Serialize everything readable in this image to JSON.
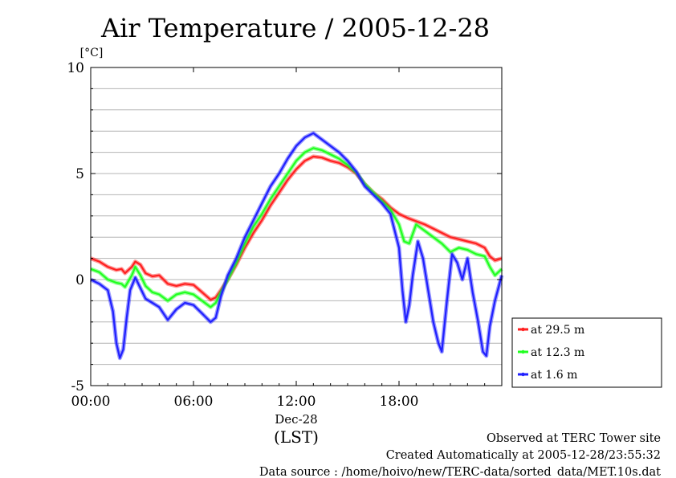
{
  "chart_data": {
    "type": "line",
    "title": "Air Temperature / 2005-12-28",
    "ylabel": "[°C]",
    "xlabel": "(LST)",
    "date_label": "Dec-28",
    "ylim": [
      -5,
      10
    ],
    "xlim": [
      0,
      24
    ],
    "y_ticks": [
      {
        "value": 10,
        "label": "10"
      },
      {
        "value": 5,
        "label": "5"
      },
      {
        "value": 0,
        "label": "0"
      },
      {
        "value": -5,
        "label": "-5"
      }
    ],
    "x_ticks": [
      {
        "value": 0,
        "label": "00:00"
      },
      {
        "value": 6,
        "label": "06:00"
      },
      {
        "value": 12,
        "label": "12:00"
      },
      {
        "value": 18,
        "label": "18:00"
      }
    ],
    "grid": true,
    "legend_position": "right-bottom-outside",
    "series": [
      {
        "name": "at 29.5 m",
        "color": "#ff2020",
        "points": [
          [
            0,
            1.0
          ],
          [
            0.5,
            0.85
          ],
          [
            1.0,
            0.6
          ],
          [
            1.5,
            0.45
          ],
          [
            1.8,
            0.5
          ],
          [
            2.0,
            0.3
          ],
          [
            2.4,
            0.6
          ],
          [
            2.6,
            0.85
          ],
          [
            2.9,
            0.7
          ],
          [
            3.2,
            0.3
          ],
          [
            3.6,
            0.15
          ],
          [
            4.0,
            0.2
          ],
          [
            4.5,
            -0.2
          ],
          [
            5.0,
            -0.3
          ],
          [
            5.5,
            -0.2
          ],
          [
            6.0,
            -0.25
          ],
          [
            6.5,
            -0.6
          ],
          [
            7.0,
            -0.95
          ],
          [
            7.3,
            -0.85
          ],
          [
            7.6,
            -0.5
          ],
          [
            8.0,
            0.0
          ],
          [
            8.5,
            0.7
          ],
          [
            9.0,
            1.5
          ],
          [
            9.5,
            2.2
          ],
          [
            10.0,
            2.8
          ],
          [
            10.5,
            3.5
          ],
          [
            11.0,
            4.1
          ],
          [
            11.5,
            4.7
          ],
          [
            12.0,
            5.2
          ],
          [
            12.5,
            5.6
          ],
          [
            13.0,
            5.8
          ],
          [
            13.5,
            5.75
          ],
          [
            14.0,
            5.6
          ],
          [
            14.5,
            5.5
          ],
          [
            15.0,
            5.3
          ],
          [
            15.5,
            5.0
          ],
          [
            16.0,
            4.5
          ],
          [
            16.5,
            4.1
          ],
          [
            17.0,
            3.8
          ],
          [
            17.5,
            3.4
          ],
          [
            18.0,
            3.1
          ],
          [
            18.5,
            2.9
          ],
          [
            19.0,
            2.75
          ],
          [
            19.5,
            2.6
          ],
          [
            20.0,
            2.4
          ],
          [
            20.5,
            2.2
          ],
          [
            21.0,
            2.0
          ],
          [
            21.5,
            1.9
          ],
          [
            22.0,
            1.8
          ],
          [
            22.5,
            1.7
          ],
          [
            23.0,
            1.5
          ],
          [
            23.3,
            1.1
          ],
          [
            23.6,
            0.9
          ],
          [
            24.0,
            1.0
          ]
        ]
      },
      {
        "name": "at 12.3 m",
        "color": "#20ff20",
        "points": [
          [
            0,
            0.5
          ],
          [
            0.5,
            0.35
          ],
          [
            1.0,
            0.0
          ],
          [
            1.5,
            -0.15
          ],
          [
            1.8,
            -0.2
          ],
          [
            2.0,
            -0.35
          ],
          [
            2.4,
            0.2
          ],
          [
            2.6,
            0.6
          ],
          [
            2.9,
            0.2
          ],
          [
            3.2,
            -0.3
          ],
          [
            3.6,
            -0.6
          ],
          [
            4.0,
            -0.7
          ],
          [
            4.5,
            -1.0
          ],
          [
            5.0,
            -0.7
          ],
          [
            5.5,
            -0.6
          ],
          [
            6.0,
            -0.7
          ],
          [
            6.5,
            -1.0
          ],
          [
            7.0,
            -1.3
          ],
          [
            7.3,
            -1.1
          ],
          [
            7.6,
            -0.6
          ],
          [
            8.0,
            0.0
          ],
          [
            8.5,
            0.8
          ],
          [
            9.0,
            1.7
          ],
          [
            9.5,
            2.5
          ],
          [
            10.0,
            3.1
          ],
          [
            10.5,
            3.8
          ],
          [
            11.0,
            4.4
          ],
          [
            11.5,
            5.0
          ],
          [
            12.0,
            5.6
          ],
          [
            12.5,
            6.0
          ],
          [
            13.0,
            6.2
          ],
          [
            13.5,
            6.1
          ],
          [
            14.0,
            5.9
          ],
          [
            14.5,
            5.7
          ],
          [
            15.0,
            5.4
          ],
          [
            15.5,
            5.05
          ],
          [
            16.0,
            4.5
          ],
          [
            16.5,
            4.1
          ],
          [
            17.0,
            3.7
          ],
          [
            17.5,
            3.3
          ],
          [
            18.0,
            2.6
          ],
          [
            18.3,
            1.8
          ],
          [
            18.6,
            1.7
          ],
          [
            19.0,
            2.6
          ],
          [
            19.5,
            2.3
          ],
          [
            20.0,
            2.0
          ],
          [
            20.5,
            1.7
          ],
          [
            21.0,
            1.3
          ],
          [
            21.5,
            1.5
          ],
          [
            22.0,
            1.4
          ],
          [
            22.5,
            1.2
          ],
          [
            23.0,
            1.1
          ],
          [
            23.3,
            0.6
          ],
          [
            23.6,
            0.2
          ],
          [
            24.0,
            0.5
          ]
        ]
      },
      {
        "name": "at 1.6 m",
        "color": "#2020ff",
        "points": [
          [
            0,
            0.0
          ],
          [
            0.5,
            -0.2
          ],
          [
            1.0,
            -0.5
          ],
          [
            1.3,
            -1.5
          ],
          [
            1.5,
            -3.0
          ],
          [
            1.7,
            -3.7
          ],
          [
            1.9,
            -3.3
          ],
          [
            2.1,
            -1.8
          ],
          [
            2.3,
            -0.5
          ],
          [
            2.6,
            0.1
          ],
          [
            2.9,
            -0.4
          ],
          [
            3.2,
            -0.9
          ],
          [
            3.6,
            -1.1
          ],
          [
            4.0,
            -1.3
          ],
          [
            4.5,
            -1.9
          ],
          [
            5.0,
            -1.4
          ],
          [
            5.5,
            -1.1
          ],
          [
            6.0,
            -1.2
          ],
          [
            6.5,
            -1.6
          ],
          [
            7.0,
            -2.0
          ],
          [
            7.3,
            -1.8
          ],
          [
            7.6,
            -0.8
          ],
          [
            8.0,
            0.2
          ],
          [
            8.5,
            1.0
          ],
          [
            9.0,
            2.0
          ],
          [
            9.5,
            2.8
          ],
          [
            10.0,
            3.6
          ],
          [
            10.5,
            4.4
          ],
          [
            11.0,
            5.0
          ],
          [
            11.5,
            5.7
          ],
          [
            12.0,
            6.3
          ],
          [
            12.5,
            6.7
          ],
          [
            13.0,
            6.9
          ],
          [
            13.5,
            6.6
          ],
          [
            14.0,
            6.3
          ],
          [
            14.5,
            6.0
          ],
          [
            15.0,
            5.6
          ],
          [
            15.5,
            5.1
          ],
          [
            16.0,
            4.4
          ],
          [
            16.5,
            4.0
          ],
          [
            17.0,
            3.6
          ],
          [
            17.5,
            3.1
          ],
          [
            18.0,
            1.5
          ],
          [
            18.2,
            -0.5
          ],
          [
            18.4,
            -2.0
          ],
          [
            18.6,
            -1.2
          ],
          [
            18.8,
            0.2
          ],
          [
            19.1,
            1.8
          ],
          [
            19.4,
            1.0
          ],
          [
            19.7,
            -0.5
          ],
          [
            20.0,
            -2.0
          ],
          [
            20.3,
            -3.0
          ],
          [
            20.5,
            -3.4
          ],
          [
            20.8,
            -1.0
          ],
          [
            21.1,
            1.2
          ],
          [
            21.4,
            0.8
          ],
          [
            21.7,
            0.0
          ],
          [
            22.0,
            1.0
          ],
          [
            22.3,
            -0.6
          ],
          [
            22.6,
            -1.9
          ],
          [
            22.9,
            -3.4
          ],
          [
            23.1,
            -3.6
          ],
          [
            23.3,
            -2.2
          ],
          [
            23.6,
            -1.0
          ],
          [
            24.0,
            0.2
          ]
        ]
      }
    ]
  },
  "legend": [
    {
      "label": "at 29.5 m",
      "color": "#ff2020"
    },
    {
      "label": "at 12.3 m",
      "color": "#20ff20"
    },
    {
      "label": "at 1.6 m",
      "color": "#2020ff"
    }
  ],
  "footer": {
    "line1": "Observed at TERC Tower site",
    "line2": "Created Automatically at 2005-12-28/23:55:32",
    "line3": "Data source : /home/hoivo/new/TERC-data/sorted_data/MET.10s.dat"
  }
}
